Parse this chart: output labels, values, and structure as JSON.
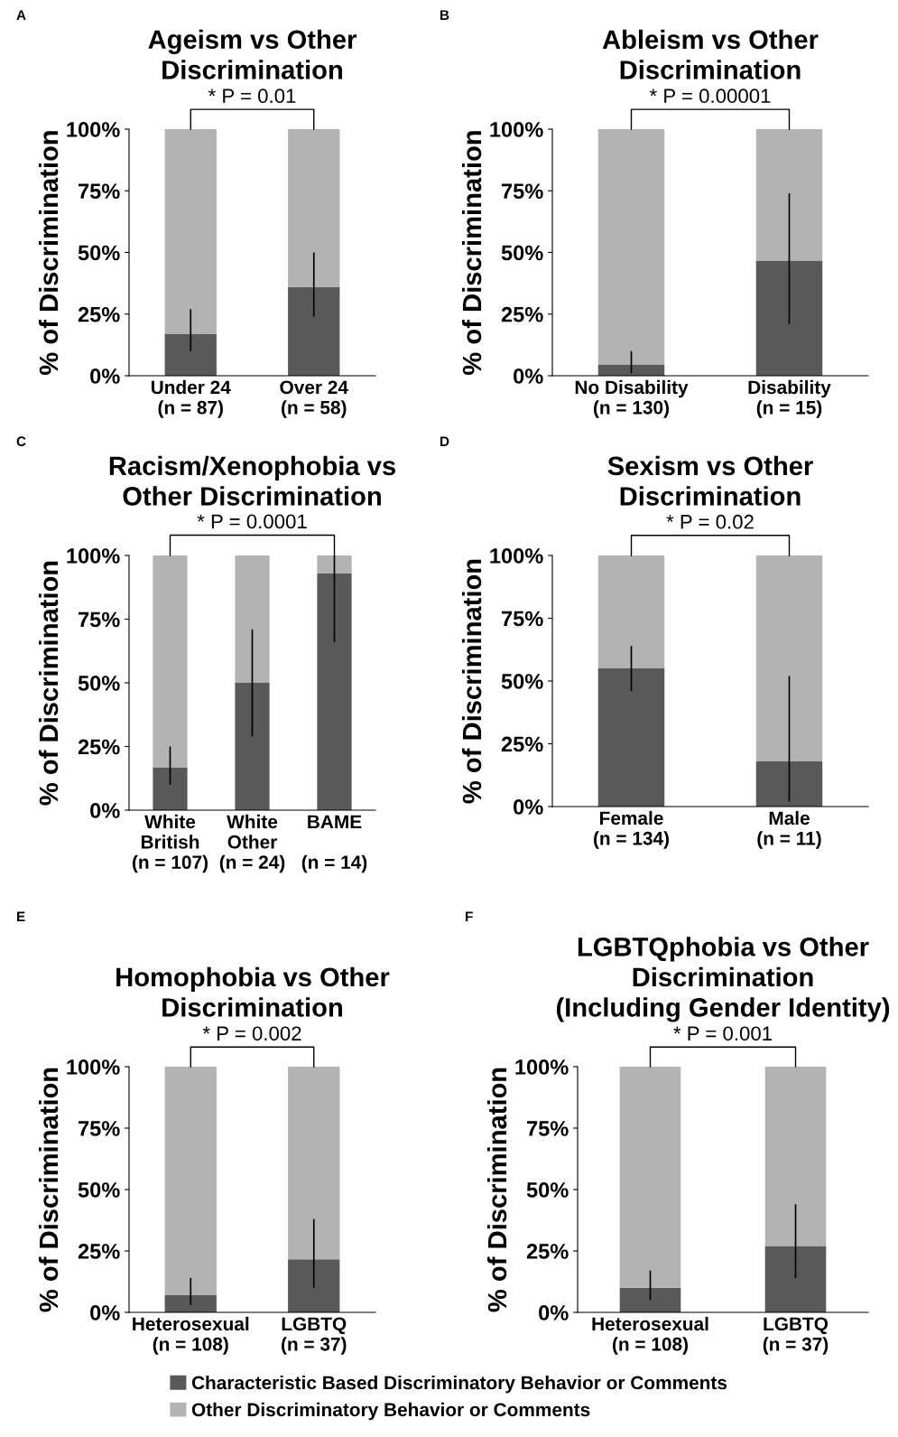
{
  "chart_data": [
    {
      "type": "bar",
      "stacked": true,
      "title": "Ageism vs Other\nDiscrimination",
      "ylabel": "% of Discrimination",
      "categories": [
        "Under 24\n(n = 87)",
        "Over 24\n(n = 58)"
      ],
      "ylim": [
        0,
        100
      ],
      "yticks": [
        {
          "value": 0,
          "label": "0%"
        },
        {
          "value": 25,
          "label": "25%"
        },
        {
          "value": 50,
          "label": "50%"
        },
        {
          "value": 75,
          "label": "75%"
        },
        {
          "value": 100,
          "label": "100%"
        }
      ],
      "annotations": [
        "A",
        "* P = 0.01"
      ],
      "series": [
        {
          "color": "#595959",
          "values": [
            17,
            36
          ],
          "errors": [
            [
              10,
              27
            ],
            [
              24,
              50
            ]
          ]
        },
        {
          "color": "#b3b3b3",
          "values": [
            83,
            64
          ]
        }
      ]
    },
    {
      "type": "bar",
      "stacked": true,
      "title": "Ableism vs Other\nDiscrimination",
      "ylabel": "% of Discrimination",
      "categories": [
        "No Disability\n(n = 130)",
        "Disability\n(n = 15)"
      ],
      "ylim": [
        0,
        100
      ],
      "yticks": [
        {
          "value": 0,
          "label": "0%"
        },
        {
          "value": 25,
          "label": "25%"
        },
        {
          "value": 50,
          "label": "50%"
        },
        {
          "value": 75,
          "label": "75%"
        },
        {
          "value": 100,
          "label": "100%"
        }
      ],
      "annotations": [
        "B",
        "* P = 0.00001"
      ],
      "series": [
        {
          "color": "#595959",
          "values": [
            4.6,
            46.7
          ],
          "errors": [
            [
              1,
              10
            ],
            [
              21,
              74
            ]
          ]
        },
        {
          "color": "#b3b3b3",
          "values": [
            95.4,
            53.3
          ]
        }
      ]
    },
    {
      "type": "bar",
      "stacked": true,
      "title": "Racism/Xenophobia vs\nOther Discrimination",
      "ylabel": "% of Discrimination",
      "categories": [
        "White\nBritish\n(n = 107)",
        "White\nOther\n(n = 24)",
        "BAME\n\n(n = 14)"
      ],
      "ylim": [
        0,
        100
      ],
      "yticks": [
        {
          "value": 0,
          "label": "0%"
        },
        {
          "value": 25,
          "label": "25%"
        },
        {
          "value": 50,
          "label": "50%"
        },
        {
          "value": 75,
          "label": "75%"
        },
        {
          "value": 100,
          "label": "100%"
        }
      ],
      "annotations": [
        "C",
        "* P = 0.0001"
      ],
      "series": [
        {
          "color": "#595959",
          "values": [
            16.8,
            50,
            92.9
          ],
          "errors": [
            [
              10,
              25
            ],
            [
              29,
              71
            ],
            [
              66,
              100
            ]
          ]
        },
        {
          "color": "#b3b3b3",
          "values": [
            83.2,
            50,
            7.1
          ]
        }
      ]
    },
    {
      "type": "bar",
      "stacked": true,
      "title": "Sexism vs Other\nDiscrimination",
      "ylabel": "% of Discrimination",
      "categories": [
        "Female\n(n = 134)",
        "Male\n(n = 11)"
      ],
      "ylim": [
        0,
        100
      ],
      "yticks": [
        {
          "value": 0,
          "label": "0%"
        },
        {
          "value": 25,
          "label": "25%"
        },
        {
          "value": 50,
          "label": "50%"
        },
        {
          "value": 75,
          "label": "75%"
        },
        {
          "value": 100,
          "label": "100%"
        }
      ],
      "annotations": [
        "D",
        "* P = 0.02"
      ],
      "series": [
        {
          "color": "#595959",
          "values": [
            55,
            18
          ],
          "errors": [
            [
              46,
              64
            ],
            [
              2,
              52
            ]
          ]
        },
        {
          "color": "#b3b3b3",
          "values": [
            45,
            82
          ]
        }
      ]
    },
    {
      "type": "bar",
      "stacked": true,
      "title": "Homophobia vs Other\nDiscrimination",
      "ylabel": "% of Discrimination",
      "categories": [
        "Heterosexual\n(n = 108)",
        "LGBTQ\n(n = 37)"
      ],
      "ylim": [
        0,
        100
      ],
      "yticks": [
        {
          "value": 0,
          "label": "0%"
        },
        {
          "value": 25,
          "label": "25%"
        },
        {
          "value": 50,
          "label": "50%"
        },
        {
          "value": 75,
          "label": "75%"
        },
        {
          "value": 100,
          "label": "100%"
        }
      ],
      "annotations": [
        "E",
        "* P = 0.002"
      ],
      "series": [
        {
          "color": "#595959",
          "values": [
            7,
            21.6
          ],
          "errors": [
            [
              3,
              14
            ],
            [
              10,
              38
            ]
          ]
        },
        {
          "color": "#b3b3b3",
          "values": [
            93,
            78.4
          ]
        }
      ]
    },
    {
      "type": "bar",
      "stacked": true,
      "title": "LGBTQphobia vs Other\nDiscrimination\n(Including Gender Identity)",
      "ylabel": "% of Discrimination",
      "categories": [
        "Heterosexual\n(n = 108)",
        "LGBTQ\n(n = 37)"
      ],
      "ylim": [
        0,
        100
      ],
      "yticks": [
        {
          "value": 0,
          "label": "0%"
        },
        {
          "value": 25,
          "label": "25%"
        },
        {
          "value": 50,
          "label": "50%"
        },
        {
          "value": 75,
          "label": "75%"
        },
        {
          "value": 100,
          "label": "100%"
        }
      ],
      "annotations": [
        "F",
        "* P = 0.001"
      ],
      "legend": "bottom",
      "series": [
        {
          "name": "Characteristic Based Discriminatory Behavior or Comments",
          "color": "#595959",
          "values": [
            10,
            27
          ],
          "errors": [
            [
              5,
              17
            ],
            [
              14,
              44
            ]
          ]
        },
        {
          "name": "Other Discriminatory Behavior or Comments",
          "color": "#b3b3b3",
          "values": [
            90,
            73
          ]
        }
      ]
    }
  ]
}
